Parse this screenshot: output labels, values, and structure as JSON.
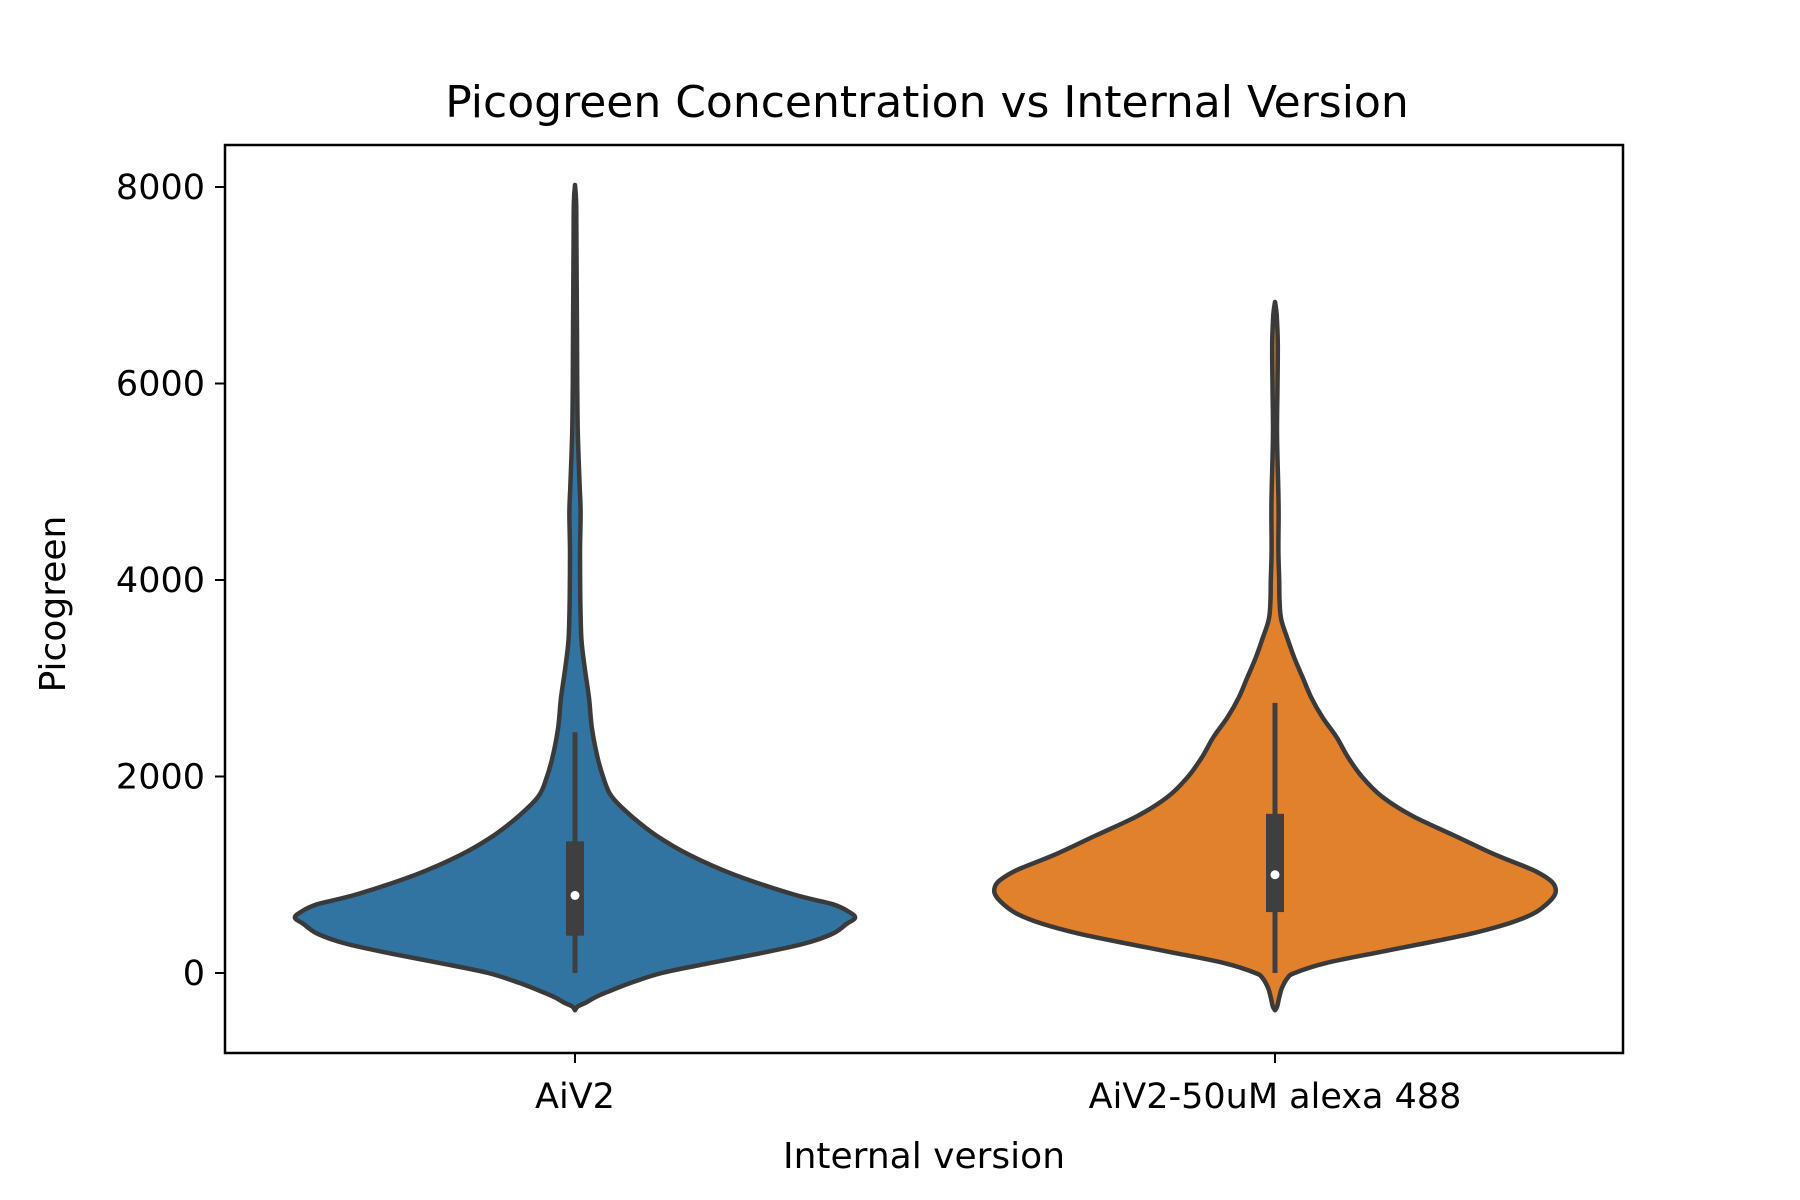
{
  "chart_data": {
    "type": "violin",
    "title": "Picogreen Concentration vs Internal Version",
    "xlabel": "Internal version",
    "ylabel": "Picogreen",
    "ylim": [
      -800,
      8450
    ],
    "yticks": [
      0,
      2000,
      4000,
      6000,
      8000
    ],
    "yticklabels": [
      "0",
      "2000",
      "4000",
      "6000",
      "8000"
    ],
    "categories": [
      "AiV2",
      "AiV2-50uM alexa 488"
    ],
    "grid": false,
    "colors": [
      "#3274a1",
      "#e1812c"
    ],
    "outline_color": "#3f3f3f",
    "series": [
      {
        "category": "AiV2",
        "color": "#3274a1",
        "whisker_low": 0,
        "q1": 380,
        "median": 790,
        "q3": 1340,
        "whisker_high": 2450,
        "density": [
          [
            -380,
            0.0
          ],
          [
            -340,
            0.01
          ],
          [
            -300,
            0.04
          ],
          [
            -250,
            0.07
          ],
          [
            -200,
            0.11
          ],
          [
            -100,
            0.2
          ],
          [
            0,
            0.31
          ],
          [
            100,
            0.48
          ],
          [
            200,
            0.66
          ],
          [
            300,
            0.82
          ],
          [
            400,
            0.92
          ],
          [
            500,
            0.97
          ],
          [
            560,
            1.0
          ],
          [
            620,
            0.98
          ],
          [
            700,
            0.92
          ],
          [
            800,
            0.78
          ],
          [
            1000,
            0.57
          ],
          [
            1200,
            0.41
          ],
          [
            1400,
            0.29
          ],
          [
            1600,
            0.2
          ],
          [
            1800,
            0.13
          ],
          [
            2000,
            0.1
          ],
          [
            2200,
            0.08
          ],
          [
            2500,
            0.06
          ],
          [
            2800,
            0.05
          ],
          [
            3100,
            0.035
          ],
          [
            3400,
            0.023
          ],
          [
            3800,
            0.019
          ],
          [
            4300,
            0.018
          ],
          [
            4700,
            0.02
          ],
          [
            5000,
            0.016
          ],
          [
            5500,
            0.01
          ],
          [
            6000,
            0.008
          ],
          [
            6500,
            0.007
          ],
          [
            7000,
            0.006
          ],
          [
            7500,
            0.005
          ],
          [
            7850,
            0.004
          ],
          [
            8020,
            0.0
          ]
        ]
      },
      {
        "category": "AiV2-50uM alexa 488",
        "color": "#e1812c",
        "whisker_low": 0,
        "q1": 620,
        "median": 1000,
        "q3": 1620,
        "whisker_high": 2750,
        "density": [
          [
            -380,
            0.0
          ],
          [
            -340,
            0.008
          ],
          [
            -250,
            0.015
          ],
          [
            -150,
            0.025
          ],
          [
            -50,
            0.045
          ],
          [
            0,
            0.07
          ],
          [
            100,
            0.18
          ],
          [
            200,
            0.35
          ],
          [
            300,
            0.53
          ],
          [
            400,
            0.7
          ],
          [
            500,
            0.83
          ],
          [
            600,
            0.92
          ],
          [
            700,
            0.97
          ],
          [
            800,
            1.0
          ],
          [
            880,
            1.0
          ],
          [
            950,
            0.98
          ],
          [
            1050,
            0.92
          ],
          [
            1200,
            0.79
          ],
          [
            1400,
            0.64
          ],
          [
            1600,
            0.49
          ],
          [
            1800,
            0.38
          ],
          [
            2000,
            0.31
          ],
          [
            2200,
            0.26
          ],
          [
            2400,
            0.22
          ],
          [
            2600,
            0.17
          ],
          [
            2800,
            0.13
          ],
          [
            3000,
            0.1
          ],
          [
            3200,
            0.07
          ],
          [
            3400,
            0.045
          ],
          [
            3600,
            0.022
          ],
          [
            3800,
            0.016
          ],
          [
            4000,
            0.015
          ],
          [
            4300,
            0.012
          ],
          [
            4700,
            0.013
          ],
          [
            5000,
            0.011
          ],
          [
            5500,
            0.007
          ],
          [
            6000,
            0.009
          ],
          [
            6400,
            0.01
          ],
          [
            6700,
            0.006
          ],
          [
            6830,
            0.0
          ]
        ]
      }
    ]
  }
}
